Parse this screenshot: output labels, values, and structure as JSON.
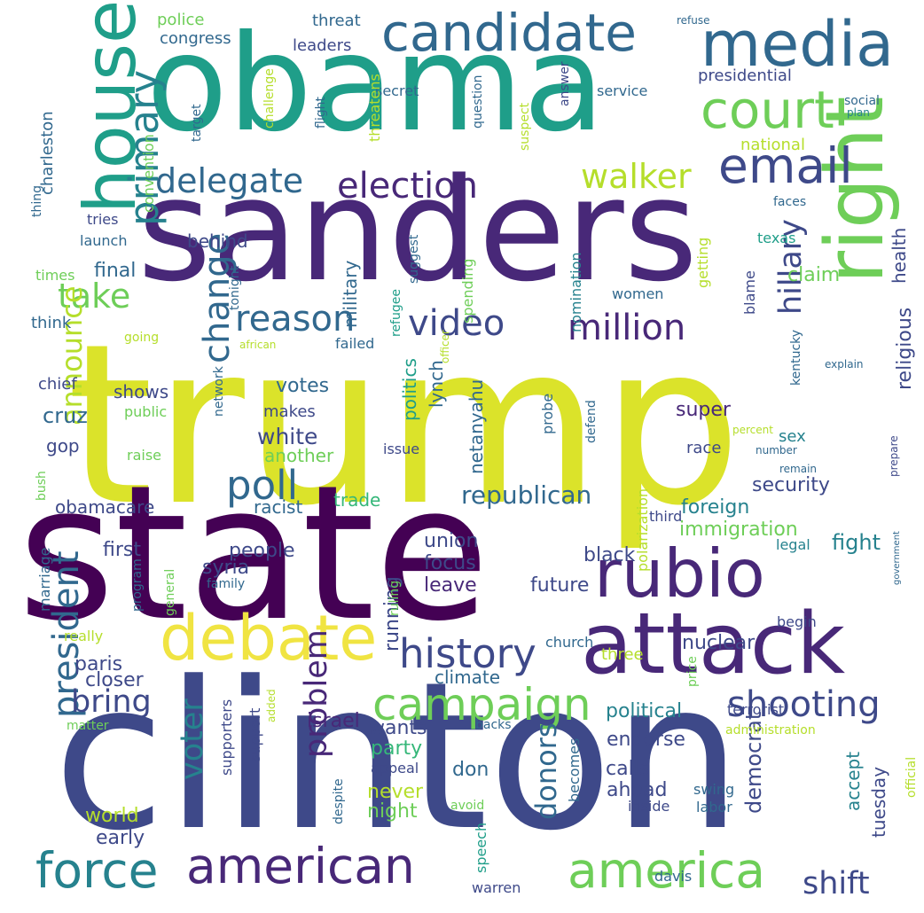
{
  "palette": {
    "c1": "#440154",
    "c2": "#482878",
    "c3": "#3e4989",
    "c4": "#31688e",
    "c5": "#26828e",
    "c6": "#1f9e89",
    "c7": "#35b779",
    "c8": "#6ece58",
    "c9": "#b5de2b",
    "c10": "#dbe32a",
    "c11": "#f0e442"
  },
  "words": [
    {
      "text": "trump",
      "color": "c10",
      "weight": 1.0
    },
    {
      "text": "clinton",
      "color": "c3",
      "weight": 0.98
    },
    {
      "text": "state",
      "color": "c1",
      "weight": 0.96
    },
    {
      "text": "sanders",
      "color": "c2",
      "weight": 0.94
    },
    {
      "text": "obama",
      "color": "c6",
      "weight": 0.92
    },
    {
      "text": "attack",
      "color": "c2",
      "weight": 0.8
    },
    {
      "text": "right",
      "color": "c8",
      "weight": 0.78
    },
    {
      "text": "house",
      "color": "c6",
      "weight": 0.76
    },
    {
      "text": "rubio",
      "color": "c2",
      "weight": 0.74
    },
    {
      "text": "media",
      "color": "c4",
      "weight": 0.72
    },
    {
      "text": "debate",
      "color": "c11",
      "weight": 0.7
    },
    {
      "text": "american",
      "color": "c2",
      "weight": 0.68
    },
    {
      "text": "court",
      "color": "c8",
      "weight": 0.66
    },
    {
      "text": "force",
      "color": "c5",
      "weight": 0.64
    },
    {
      "text": "america",
      "color": "c8",
      "weight": 0.62
    },
    {
      "text": "candidate",
      "color": "c4",
      "weight": 0.6
    },
    {
      "text": "email",
      "color": "c3",
      "weight": 0.58
    },
    {
      "text": "campaign",
      "color": "c8",
      "weight": 0.56
    },
    {
      "text": "history",
      "color": "c3",
      "weight": 0.54
    },
    {
      "text": "change",
      "color": "c4",
      "weight": 0.52
    },
    {
      "text": "primary",
      "color": "c5",
      "weight": 0.52
    },
    {
      "text": "shooting",
      "color": "c3",
      "weight": 0.5
    },
    {
      "text": "video",
      "color": "c3",
      "weight": 0.5
    },
    {
      "text": "million",
      "color": "c2",
      "weight": 0.5
    },
    {
      "text": "president",
      "color": "c4",
      "weight": 0.48
    },
    {
      "text": "election",
      "color": "c2",
      "weight": 0.48
    },
    {
      "text": "reason",
      "color": "c4",
      "weight": 0.46
    },
    {
      "text": "poll",
      "color": "c4",
      "weight": 0.46
    },
    {
      "text": "walker",
      "color": "c9",
      "weight": 0.44
    },
    {
      "text": "delegate",
      "color": "c4",
      "weight": 0.44
    },
    {
      "text": "take",
      "color": "c8",
      "weight": 0.44
    },
    {
      "text": "problem",
      "color": "c2",
      "weight": 0.42
    },
    {
      "text": "hillary",
      "color": "c3",
      "weight": 0.42
    },
    {
      "text": "shift",
      "color": "c3",
      "weight": 0.42
    },
    {
      "text": "bring",
      "color": "c3",
      "weight": 0.42
    },
    {
      "text": "announce",
      "color": "c9",
      "weight": 0.4
    },
    {
      "text": "voter",
      "color": "c5",
      "weight": 0.4
    },
    {
      "text": "donors",
      "color": "c4",
      "weight": 0.38
    },
    {
      "text": "republican",
      "color": "c4",
      "weight": 0.38
    },
    {
      "text": "white",
      "color": "c3",
      "weight": 0.36
    },
    {
      "text": "security",
      "color": "c3",
      "weight": 0.34
    },
    {
      "text": "foreign",
      "color": "c5",
      "weight": 0.34
    },
    {
      "text": "religious",
      "color": "c3",
      "weight": 0.34
    },
    {
      "text": "political",
      "color": "c5",
      "weight": 0.34
    },
    {
      "text": "super",
      "color": "c2",
      "weight": 0.32
    },
    {
      "text": "nuclear",
      "color": "c3",
      "weight": 0.32
    },
    {
      "text": "fight",
      "color": "c5",
      "weight": 0.32
    },
    {
      "text": "cruz",
      "color": "c4",
      "weight": 0.32
    },
    {
      "text": "democrat",
      "color": "c3",
      "weight": 0.32
    },
    {
      "text": "immigration",
      "color": "c8",
      "weight": 0.3
    },
    {
      "text": "syria",
      "color": "c3",
      "weight": 0.3
    },
    {
      "text": "people",
      "color": "c3",
      "weight": 0.3
    },
    {
      "text": "first",
      "color": "c3",
      "weight": 0.3
    },
    {
      "text": "focus",
      "color": "c3",
      "weight": 0.3
    },
    {
      "text": "votes",
      "color": "c4",
      "weight": 0.3
    },
    {
      "text": "running",
      "color": "c3",
      "weight": 0.3
    },
    {
      "text": "leave",
      "color": "c2",
      "weight": 0.3
    },
    {
      "text": "future",
      "color": "c3",
      "weight": 0.3
    },
    {
      "text": "union",
      "color": "c3",
      "weight": 0.3
    },
    {
      "text": "black",
      "color": "c3",
      "weight": 0.3
    },
    {
      "text": "claim",
      "color": "c8",
      "weight": 0.3
    },
    {
      "text": "final",
      "color": "c4",
      "weight": 0.3
    },
    {
      "text": "world",
      "color": "c9",
      "weight": 0.3
    },
    {
      "text": "early",
      "color": "c3",
      "weight": 0.3
    },
    {
      "text": "paris",
      "color": "c3",
      "weight": 0.3
    },
    {
      "text": "closer",
      "color": "c3",
      "weight": 0.3
    },
    {
      "text": "israel",
      "color": "c2",
      "weight": 0.3
    },
    {
      "text": "wants",
      "color": "c3",
      "weight": 0.3
    },
    {
      "text": "climate",
      "color": "c4",
      "weight": 0.3
    },
    {
      "text": "party",
      "color": "c7",
      "weight": 0.3
    },
    {
      "text": "don",
      "color": "c4",
      "weight": 0.3
    },
    {
      "text": "never",
      "color": "c9",
      "weight": 0.3
    },
    {
      "text": "night",
      "color": "c8",
      "weight": 0.3
    },
    {
      "text": "calls",
      "color": "c3",
      "weight": 0.3
    },
    {
      "text": "ahead",
      "color": "c3",
      "weight": 0.3
    },
    {
      "text": "endorse",
      "color": "c3",
      "weight": 0.3
    },
    {
      "text": "tuesday",
      "color": "c3",
      "weight": 0.3
    },
    {
      "text": "accept",
      "color": "c5",
      "weight": 0.3
    },
    {
      "text": "netanyahu",
      "color": "c4",
      "weight": 0.28
    },
    {
      "text": "politics",
      "color": "c6",
      "weight": 0.28
    },
    {
      "text": "military",
      "color": "c4",
      "weight": 0.28
    },
    {
      "text": "lynch",
      "color": "c4",
      "weight": 0.28
    },
    {
      "text": "racist",
      "color": "c4",
      "weight": 0.28
    },
    {
      "text": "trade",
      "color": "c7",
      "weight": 0.28
    },
    {
      "text": "another",
      "color": "c8",
      "weight": 0.28
    },
    {
      "text": "makes",
      "color": "c3",
      "weight": 0.28
    },
    {
      "text": "shows",
      "color": "c3",
      "weight": 0.28
    },
    {
      "text": "behind",
      "color": "c3",
      "weight": 0.28
    },
    {
      "text": "gop",
      "color": "c3",
      "weight": 0.28
    },
    {
      "text": "obamacare",
      "color": "c3",
      "weight": 0.28
    },
    {
      "text": "health",
      "color": "c3",
      "weight": 0.28
    },
    {
      "text": "congress",
      "color": "c4",
      "weight": 0.26
    },
    {
      "text": "leaders",
      "color": "c3",
      "weight": 0.26
    },
    {
      "text": "threat",
      "color": "c4",
      "weight": 0.26
    },
    {
      "text": "police",
      "color": "c8",
      "weight": 0.26
    },
    {
      "text": "presidential",
      "color": "c3",
      "weight": 0.26
    },
    {
      "text": "national",
      "color": "c9",
      "weight": 0.26
    },
    {
      "text": "secret",
      "color": "c4",
      "weight": 0.24
    },
    {
      "text": "service",
      "color": "c4",
      "weight": 0.24
    },
    {
      "text": "think",
      "color": "c4",
      "weight": 0.24
    },
    {
      "text": "chief",
      "color": "c3",
      "weight": 0.24
    },
    {
      "text": "charleston",
      "color": "c4",
      "weight": 0.24
    },
    {
      "text": "thing",
      "color": "c4",
      "weight": 0.22
    },
    {
      "text": "tries",
      "color": "c3",
      "weight": 0.22
    },
    {
      "text": "launch",
      "color": "c4",
      "weight": 0.22
    },
    {
      "text": "times",
      "color": "c8",
      "weight": 0.22
    },
    {
      "text": "going",
      "color": "c9",
      "weight": 0.22
    },
    {
      "text": "convention",
      "color": "c8",
      "weight": 0.22
    },
    {
      "text": "target",
      "color": "c4",
      "weight": 0.22
    },
    {
      "text": "challenge",
      "color": "c9",
      "weight": 0.22
    },
    {
      "text": "flight",
      "color": "c4",
      "weight": 0.22
    },
    {
      "text": "threatens",
      "color": "c9",
      "weight": 0.22
    },
    {
      "text": "suggest",
      "color": "c4",
      "weight": 0.22
    },
    {
      "text": "tonight",
      "color": "c4",
      "weight": 0.22
    },
    {
      "text": "refugee",
      "color": "c6",
      "weight": 0.22
    },
    {
      "text": "failed",
      "color": "c4",
      "weight": 0.22
    },
    {
      "text": "network",
      "color": "c4",
      "weight": 0.22
    },
    {
      "text": "public",
      "color": "c8",
      "weight": 0.22
    },
    {
      "text": "raise",
      "color": "c8",
      "weight": 0.22
    },
    {
      "text": "issue",
      "color": "c3",
      "weight": 0.22
    },
    {
      "text": "marriage",
      "color": "c4",
      "weight": 0.22
    },
    {
      "text": "family",
      "color": "c4",
      "weight": 0.22
    },
    {
      "text": "program",
      "color": "c4",
      "weight": 0.22
    },
    {
      "text": "general",
      "color": "c8",
      "weight": 0.22
    },
    {
      "text": "ruling",
      "color": "c8",
      "weight": 0.22
    },
    {
      "text": "really",
      "color": "c9",
      "weight": 0.22
    },
    {
      "text": "bush",
      "color": "c8",
      "weight": 0.22
    },
    {
      "text": "supporters",
      "color": "c3",
      "weight": 0.22
    },
    {
      "text": "support",
      "color": "c3",
      "weight": 0.22
    },
    {
      "text": "appeal",
      "color": "c3",
      "weight": 0.22
    },
    {
      "text": "despite",
      "color": "c4",
      "weight": 0.22
    },
    {
      "text": "speech",
      "color": "c6",
      "weight": 0.22
    },
    {
      "text": "avoid",
      "color": "c8",
      "weight": 0.22
    },
    {
      "text": "warren",
      "color": "c3",
      "weight": 0.22
    },
    {
      "text": "becomes",
      "color": "c4",
      "weight": 0.22
    },
    {
      "text": "inside",
      "color": "c3",
      "weight": 0.22
    },
    {
      "text": "davis",
      "color": "c4",
      "weight": 0.22
    },
    {
      "text": "labor",
      "color": "c4",
      "weight": 0.22
    },
    {
      "text": "swing",
      "color": "c4",
      "weight": 0.22
    },
    {
      "text": "church",
      "color": "c4",
      "weight": 0.22
    },
    {
      "text": "price",
      "color": "c8",
      "weight": 0.22
    },
    {
      "text": "three",
      "color": "c9",
      "weight": 0.22
    },
    {
      "text": "polarization",
      "color": "c9",
      "weight": 0.22
    },
    {
      "text": "probe",
      "color": "c4",
      "weight": 0.22
    },
    {
      "text": "defend",
      "color": "c4",
      "weight": 0.22
    },
    {
      "text": "third",
      "color": "c3",
      "weight": 0.22
    },
    {
      "text": "race",
      "color": "c3",
      "weight": 0.22
    },
    {
      "text": "sex",
      "color": "c5",
      "weight": 0.22
    },
    {
      "text": "legal",
      "color": "c5",
      "weight": 0.22
    },
    {
      "text": "begin",
      "color": "c3",
      "weight": 0.22
    },
    {
      "text": "nomination",
      "color": "c5",
      "weight": 0.22
    },
    {
      "text": "spending",
      "color": "c8",
      "weight": 0.22
    },
    {
      "text": "women",
      "color": "c4",
      "weight": 0.22
    },
    {
      "text": "getting",
      "color": "c9",
      "weight": 0.22
    },
    {
      "text": "blame",
      "color": "c3",
      "weight": 0.22
    },
    {
      "text": "texas",
      "color": "c6",
      "weight": 0.22
    },
    {
      "text": "kentucky",
      "color": "c4",
      "weight": 0.22
    },
    {
      "text": "faces",
      "color": "c4",
      "weight": 0.22
    },
    {
      "text": "question",
      "color": "c4",
      "weight": 0.2
    },
    {
      "text": "suspect",
      "color": "c9",
      "weight": 0.2
    },
    {
      "text": "answer",
      "color": "c3",
      "weight": 0.2
    },
    {
      "text": "social",
      "color": "c4",
      "weight": 0.2
    },
    {
      "text": "plan",
      "color": "c5",
      "weight": 0.2
    },
    {
      "text": "refuse",
      "color": "c4",
      "weight": 0.2
    },
    {
      "text": "african",
      "color": "c9",
      "weight": 0.2
    },
    {
      "text": "officer",
      "color": "c9",
      "weight": 0.2
    },
    {
      "text": "explain",
      "color": "c4",
      "weight": 0.2
    },
    {
      "text": "percent",
      "color": "c9",
      "weight": 0.2
    },
    {
      "text": "number",
      "color": "c4",
      "weight": 0.2
    },
    {
      "text": "remain",
      "color": "c4",
      "weight": 0.2
    },
    {
      "text": "prepare",
      "color": "c3",
      "weight": 0.2
    },
    {
      "text": "government",
      "color": "c4",
      "weight": 0.2
    },
    {
      "text": "official",
      "color": "c9",
      "weight": 0.2
    },
    {
      "text": "administration",
      "color": "c9",
      "weight": 0.2
    },
    {
      "text": "terrorist",
      "color": "c3",
      "weight": 0.2
    },
    {
      "text": "backs",
      "color": "c4",
      "weight": 0.2
    },
    {
      "text": "added",
      "color": "c9",
      "weight": 0.2
    },
    {
      "text": "matter",
      "color": "c8",
      "weight": 0.2
    }
  ]
}
